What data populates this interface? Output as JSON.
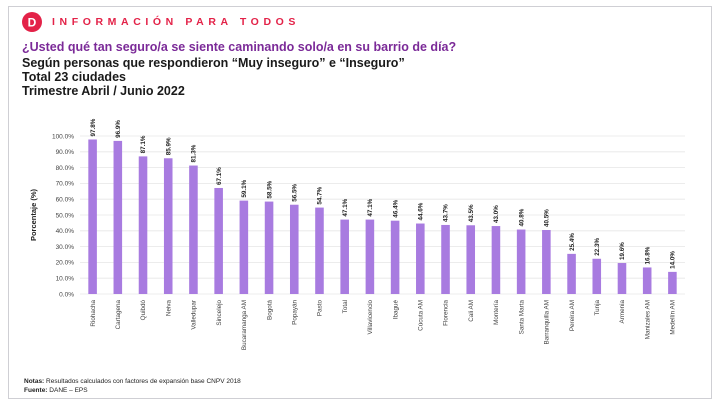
{
  "header": {
    "brand": "INFORMACIÓN PARA TODOS",
    "logo_letter": "D"
  },
  "titles": {
    "question": "¿Usted qué tan seguro/a se siente caminando solo/a en su barrio de día?",
    "subtitle1": "Según personas que respondieron “Muy inseguro” e “Inseguro”",
    "subtitle2": "Total 23 ciudades",
    "subtitle3": "Trimestre Abril / Junio 2022"
  },
  "footer": {
    "notes_label": "Notas:",
    "notes_text": " Resultados calculados con factores de expansión base CNPV 2018",
    "source_label": "Fuente:",
    "source_text": " DANE – EPS"
  },
  "colors": {
    "bar": "#a87be0",
    "brand": "#e32248",
    "question": "#7b2a98",
    "grid": "#e6e6e6"
  },
  "chart_data": {
    "type": "bar",
    "ylabel": "Porcentaje (%)",
    "ylim": [
      0,
      100
    ],
    "yticks": [
      "0.0%",
      "10.0%",
      "20.0%",
      "30.0%",
      "40.0%",
      "50.0%",
      "60.0%",
      "70.0%",
      "80.0%",
      "90.0%",
      "100.0%"
    ],
    "grid": true,
    "categories": [
      "Riohacha",
      "Cartagena",
      "Quibdó",
      "Neiva",
      "Valledupar",
      "Sincelejo",
      "Bucaramanga AM",
      "Bogotá",
      "Popayán",
      "Pasto",
      "Total",
      "Villavicencio",
      "Ibagué",
      "Cúcuta AM",
      "Florencia",
      "Cali AM",
      "Montería",
      "Santa Marta",
      "Barranquilla AM",
      "Pereira AM",
      "Tunja",
      "Armenia",
      "Manizales AM",
      "Medellín AM"
    ],
    "values": [
      97.8,
      96.9,
      87.1,
      85.9,
      81.3,
      67.1,
      59.1,
      58.5,
      56.5,
      54.7,
      47.1,
      47.1,
      46.4,
      44.6,
      43.7,
      43.5,
      43.0,
      40.8,
      40.5,
      25.4,
      22.3,
      19.6,
      16.8,
      14.0
    ],
    "data_labels": [
      "97.8%",
      "96.9%",
      "87.1%",
      "85.9%",
      "81.3%",
      "67.1%",
      "59.1%",
      "58.5%",
      "56.5%",
      "54.7%",
      "47.1%",
      "47.1%",
      "46.4%",
      "44.6%",
      "43.7%",
      "43.5%",
      "43.0%",
      "40.8%",
      "40.5%",
      "25.4%",
      "22.3%",
      "19.6%",
      "16.8%",
      "14.0%"
    ]
  }
}
